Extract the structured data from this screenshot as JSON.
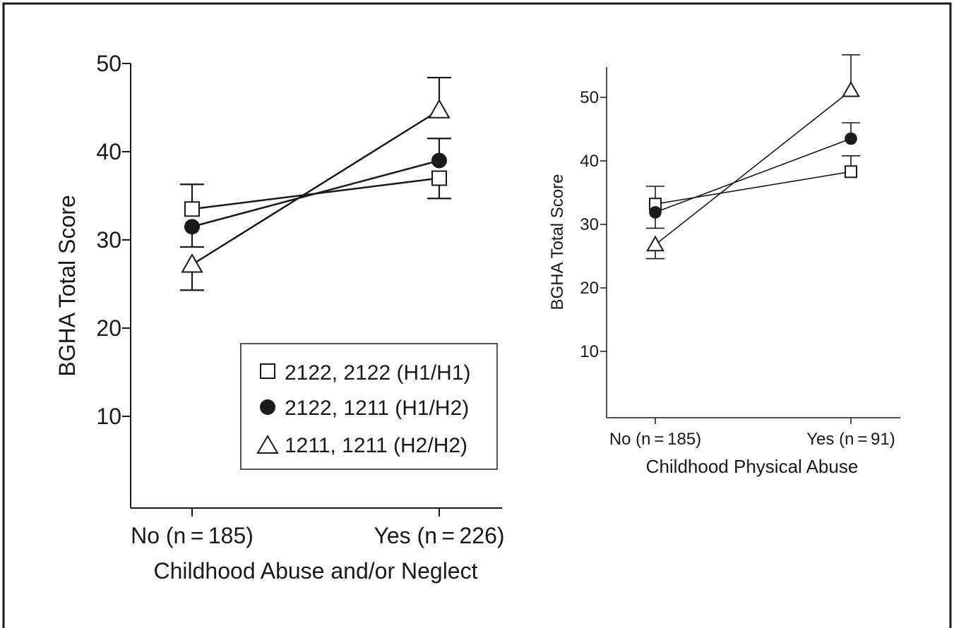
{
  "chart_data": [
    {
      "type": "line",
      "xlabel": "Childhood Abuse and/or Neglect",
      "ylabel": "BGHA Total Score",
      "categories": [
        "No (n = 185)",
        "Yes (n = 226)"
      ],
      "ylim": [
        0,
        50
      ],
      "yticks": [
        10,
        20,
        30,
        40,
        50
      ],
      "grid": false,
      "legend": {
        "placement": "bottom-right",
        "entries": [
          "2122, 2122 (H1/H1)",
          "2122, 1211 (H1/H2)",
          "1211, 1211 (H2/H2)"
        ]
      },
      "series": [
        {
          "name": "2122, 2122 (H1/H1)",
          "marker": "square",
          "values": [
            33.5,
            37.0
          ],
          "error_upper": [
            36.3,
            37.0
          ],
          "error_lower": [
            33.5,
            34.7
          ]
        },
        {
          "name": "2122, 1211 (H1/H2)",
          "marker": "circle",
          "values": [
            31.5,
            39.0
          ],
          "error_upper": [
            31.5,
            41.5
          ],
          "error_lower": [
            29.2,
            39.0
          ]
        },
        {
          "name": "1211, 1211 (H2/H2)",
          "marker": "triangle",
          "values": [
            27.2,
            44.7
          ],
          "error_upper": [
            27.2,
            48.4
          ],
          "error_lower": [
            24.3,
            44.7
          ]
        }
      ]
    },
    {
      "type": "line",
      "xlabel": "Childhood Physical Abuse",
      "ylabel": "BGHA Total Score",
      "categories": [
        "No (n = 185)",
        "Yes (n = 91)"
      ],
      "ylim": [
        0,
        55
      ],
      "yticks": [
        10,
        20,
        30,
        40,
        50
      ],
      "grid": false,
      "series": [
        {
          "name": "2122, 2122 (H1/H1)",
          "marker": "square",
          "values": [
            33.2,
            38.3
          ],
          "error_upper": [
            36.0,
            40.8
          ],
          "error_lower": [
            33.2,
            38.3
          ]
        },
        {
          "name": "2122, 1211 (H1/H2)",
          "marker": "circle",
          "values": [
            31.9,
            43.5
          ],
          "error_upper": [
            31.9,
            46.0
          ],
          "error_lower": [
            29.4,
            43.5
          ]
        },
        {
          "name": "1211, 1211 (H2/H2)",
          "marker": "triangle",
          "values": [
            26.8,
            51.1
          ],
          "error_upper": [
            26.8,
            56.7
          ],
          "error_lower": [
            24.6,
            51.1
          ]
        }
      ]
    }
  ]
}
